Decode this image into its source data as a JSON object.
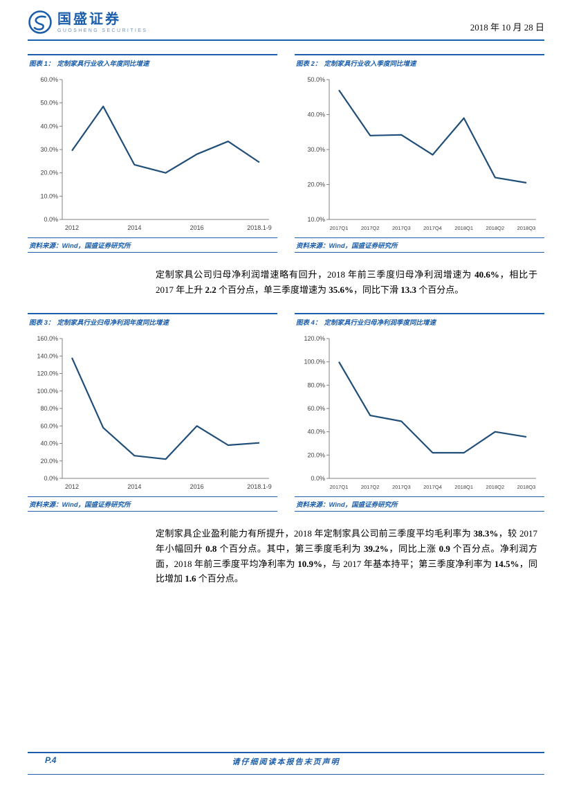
{
  "header": {
    "brand": "国盛证券",
    "brand_sub": "GUOSHENG SECURITIES",
    "date": "2018 年 10 月 28 日"
  },
  "colors": {
    "accent": "#1B5EAC",
    "chart_line": "#1F4E79",
    "axis": "#808080",
    "tick_text": "#404040"
  },
  "paragraphs": {
    "p1": [
      {
        "t": "定制家具公司归母净利润增速略有回升，2018 年前三季度归母净利润增速为 "
      },
      {
        "t": "40.6%",
        "b": true
      },
      {
        "t": "，相比于 2017 年上升 "
      },
      {
        "t": "2.2",
        "b": true
      },
      {
        "t": " 个百分点，单三季度增速为 "
      },
      {
        "t": "35.6%",
        "b": true
      },
      {
        "t": "，同比下滑 "
      },
      {
        "t": "13.3",
        "b": true
      },
      {
        "t": " 个百分点。"
      }
    ],
    "p2": [
      {
        "t": "定制家具企业盈利能力有所提升，2018 年定制家具公司前三季度平均毛利率为 "
      },
      {
        "t": "38.3%",
        "b": true
      },
      {
        "t": "，较 2017 年小幅回升 "
      },
      {
        "t": "0.8",
        "b": true
      },
      {
        "t": " 个百分点。其中，第三季度毛利为 "
      },
      {
        "t": "39.2%",
        "b": true
      },
      {
        "t": "，同比上涨 "
      },
      {
        "t": "0.9",
        "b": true
      },
      {
        "t": " 个百分点。净利润方面，2018 年前三季度平均净利率为 "
      },
      {
        "t": "10.9%",
        "b": true
      },
      {
        "t": "，与 2017 年基本持平；第三季度净利率为 "
      },
      {
        "t": "14.5%",
        "b": true
      },
      {
        "t": "，同比增加 "
      },
      {
        "t": "1.6",
        "b": true
      },
      {
        "t": " 个百分点。"
      }
    ]
  },
  "footer": {
    "page_label": "P.4",
    "disclaimer": "请仔细阅读本报告末页声明"
  },
  "chart_data": [
    {
      "type": "line",
      "label": "图表 1：",
      "title": "定制家具行业收入年度同比增速",
      "source": "资料来源：Wind，国盛证券研究所",
      "categories": [
        "2012",
        "2013",
        "2014",
        "2015",
        "2016",
        "2017",
        "2018.1-9"
      ],
      "values": [
        29.5,
        48.5,
        23.5,
        20.0,
        28.0,
        33.5,
        24.5
      ],
      "x_tick_labels": [
        "2012",
        "2014",
        "2016",
        "2018.1-9"
      ],
      "x_tick_positions": [
        0,
        2,
        4,
        6
      ],
      "x_small": false,
      "ylim": [
        0,
        60
      ],
      "y_step": 10,
      "ylabel": "",
      "xlabel": "",
      "grid": false,
      "legend": "none"
    },
    {
      "type": "line",
      "label": "图表 2：",
      "title": "定制家具行业收入季度同比增速",
      "source": "资料来源：Wind，国盛证券研究所",
      "categories": [
        "2017Q1",
        "2017Q2",
        "2017Q3",
        "2017Q4",
        "2018Q1",
        "2018Q2",
        "2018Q3"
      ],
      "values": [
        47.0,
        34.0,
        34.2,
        28.5,
        39.0,
        22.0,
        20.5
      ],
      "x_tick_labels": [
        "2017Q1",
        "2017Q2",
        "2017Q3",
        "2017Q4",
        "2018Q1",
        "2018Q2",
        "2018Q3"
      ],
      "x_tick_positions": [
        0,
        1,
        2,
        3,
        4,
        5,
        6
      ],
      "x_small": true,
      "ylim": [
        10,
        50
      ],
      "y_step": 10,
      "ylabel": "",
      "xlabel": "",
      "grid": false,
      "legend": "none"
    },
    {
      "type": "line",
      "label": "图表 3：",
      "title": "定制家具行业归母净利润年度同比增速",
      "source": "资料来源：Wind，国盛证券研究所",
      "categories": [
        "2012",
        "2013",
        "2014",
        "2015",
        "2016",
        "2017",
        "2018.1-9"
      ],
      "values": [
        138.0,
        58.0,
        26.0,
        22.0,
        60.0,
        38.0,
        40.6
      ],
      "x_tick_labels": [
        "2012",
        "2014",
        "2016",
        "2018.1-9"
      ],
      "x_tick_positions": [
        0,
        2,
        4,
        6
      ],
      "x_small": false,
      "ylim": [
        0,
        160
      ],
      "y_step": 20,
      "ylabel": "",
      "xlabel": "",
      "grid": false,
      "legend": "none"
    },
    {
      "type": "line",
      "label": "图表 4：",
      "title": "定制家具行业归母净利润季度同比增速",
      "source": "资料来源：Wind，国盛证券研究所",
      "categories": [
        "2017Q1",
        "2017Q2",
        "2017Q3",
        "2017Q4",
        "2018Q1",
        "2018Q2",
        "2018Q3"
      ],
      "values": [
        100.0,
        54.0,
        49.0,
        22.0,
        22.0,
        40.0,
        35.6
      ],
      "x_tick_labels": [
        "2017Q1",
        "2017Q2",
        "2017Q3",
        "2017Q4",
        "2018Q1",
        "2018Q2",
        "2018Q3"
      ],
      "x_tick_positions": [
        0,
        1,
        2,
        3,
        4,
        5,
        6
      ],
      "x_small": true,
      "ylim": [
        0,
        120
      ],
      "y_step": 20,
      "ylabel": "",
      "xlabel": "",
      "grid": false,
      "legend": "none"
    }
  ]
}
